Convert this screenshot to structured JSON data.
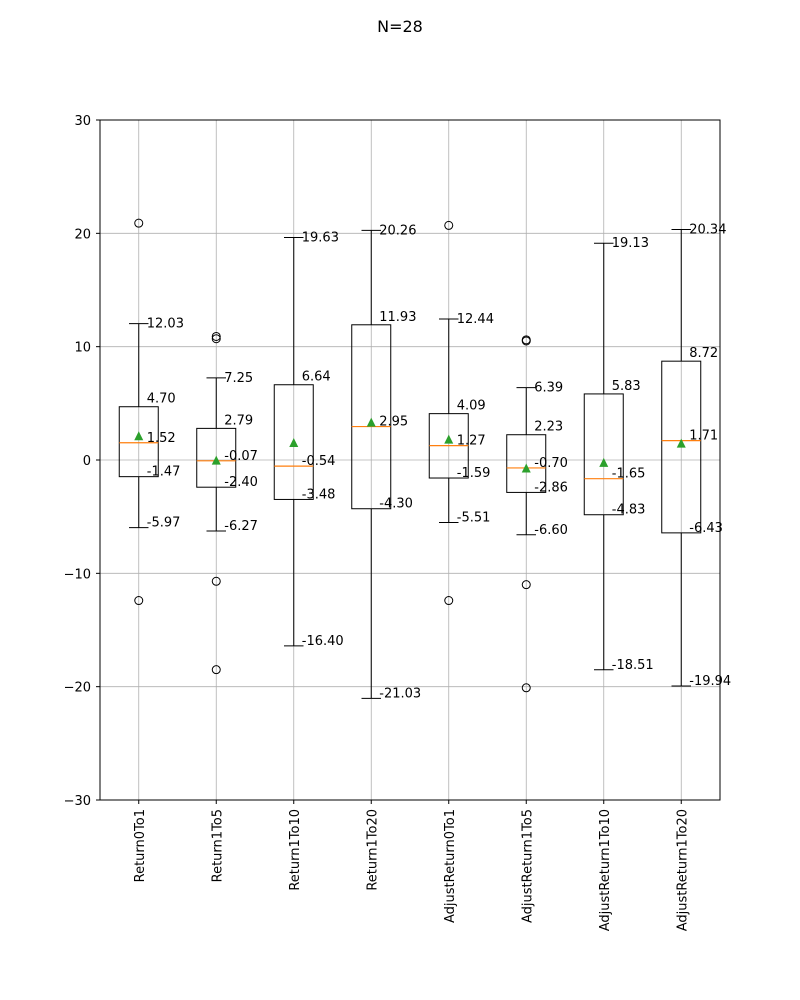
{
  "chart_data": {
    "type": "box",
    "title": "N=28",
    "xlabel": "",
    "ylabel": "",
    "ylim": [
      -30,
      30
    ],
    "yticks": [
      -30,
      -20,
      -10,
      0,
      10,
      20,
      30
    ],
    "ytick_labels": [
      "−30",
      "−20",
      "−10",
      "0",
      "10",
      "20",
      "30"
    ],
    "grid": true,
    "categories": [
      "Return0To1",
      "Return1To5",
      "Return1To10",
      "Return1To20",
      "AdjustReturn0To1",
      "AdjustReturn1To5",
      "AdjustReturn1To10",
      "AdjustReturn1To20"
    ],
    "boxes": [
      {
        "whisker_low": -5.97,
        "q1": -1.47,
        "median": 1.52,
        "q3": 4.7,
        "whisker_high": 12.03,
        "mean": 2.1,
        "outliers": [
          20.9,
          -12.4
        ],
        "labels": {
          "whisker_high": "12.03",
          "q3": "4.70",
          "median": "1.52",
          "q1": "-1.47",
          "whisker_low": "-5.97"
        }
      },
      {
        "whisker_low": -6.27,
        "q1": -2.4,
        "median": -0.07,
        "q3": 2.79,
        "whisker_high": 7.25,
        "mean": -0.05,
        "outliers": [
          10.9,
          10.7,
          -10.7,
          -18.5
        ],
        "labels": {
          "whisker_high": "7.25",
          "q3": "2.79",
          "median": "-0.07",
          "q1": "-2.40",
          "whisker_low": "-6.27"
        }
      },
      {
        "whisker_low": -16.4,
        "q1": -3.48,
        "median": -0.54,
        "q3": 6.64,
        "whisker_high": 19.63,
        "mean": 1.5,
        "outliers": [],
        "labels": {
          "whisker_high": "19.63",
          "q3": "6.64",
          "median": "-0.54",
          "q1": "-3.48",
          "whisker_low": "-16.40"
        }
      },
      {
        "whisker_low": -21.03,
        "q1": -4.3,
        "median": 2.95,
        "q3": 11.93,
        "whisker_high": 20.26,
        "mean": 3.3,
        "outliers": [],
        "labels": {
          "whisker_high": "20.26",
          "q3": "11.93",
          "median": "2.95",
          "q1": "-4.30",
          "whisker_low": "-21.03"
        }
      },
      {
        "whisker_low": -5.51,
        "q1": -1.59,
        "median": 1.27,
        "q3": 4.09,
        "whisker_high": 12.44,
        "mean": 1.8,
        "outliers": [
          20.7,
          -12.4
        ],
        "labels": {
          "whisker_high": "12.44",
          "q3": "4.09",
          "median": "1.27",
          "q1": "-1.59",
          "whisker_low": "-5.51"
        }
      },
      {
        "whisker_low": -6.6,
        "q1": -2.86,
        "median": -0.7,
        "q3": 2.23,
        "whisker_high": 6.39,
        "mean": -0.75,
        "outliers": [
          10.6,
          10.5,
          -11.0,
          -20.1
        ],
        "labels": {
          "whisker_high": "6.39",
          "q3": "2.23",
          "median": "-0.70",
          "q1": "-2.86",
          "whisker_low": "-6.60"
        }
      },
      {
        "whisker_low": -18.51,
        "q1": -4.83,
        "median": -1.65,
        "q3": 5.83,
        "whisker_high": 19.13,
        "mean": -0.25,
        "outliers": [],
        "labels": {
          "whisker_high": "19.13",
          "q3": "5.83",
          "median": "-1.65",
          "q1": "-4.83",
          "whisker_low": "-18.51"
        }
      },
      {
        "whisker_low": -19.94,
        "q1": -6.43,
        "median": 1.71,
        "q3": 8.72,
        "whisker_high": 20.34,
        "mean": 1.45,
        "outliers": [],
        "labels": {
          "whisker_high": "20.34",
          "q3": "8.72",
          "median": "1.71",
          "q1": "-6.43",
          "whisker_low": "-19.94"
        }
      }
    ],
    "colors": {
      "box": "#000000",
      "median": "#ff7f0e",
      "mean": "#2ca02c",
      "grid": "#b0b0b0"
    }
  }
}
